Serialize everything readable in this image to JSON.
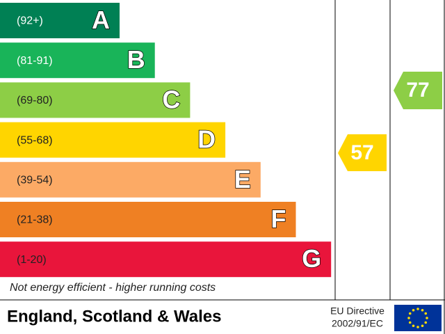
{
  "bands": [
    {
      "range": "(92+)",
      "letter": "A"
    },
    {
      "range": "(81-91)",
      "letter": "B"
    },
    {
      "range": "(69-80)",
      "letter": "C"
    },
    {
      "range": "(55-68)",
      "letter": "D"
    },
    {
      "range": "(39-54)",
      "letter": "E"
    },
    {
      "range": "(21-38)",
      "letter": "F"
    },
    {
      "range": "(1-20)",
      "letter": "G"
    }
  ],
  "footer_note": "Not energy efficient - higher running costs",
  "region": "England, Scotland & Wales",
  "directive": {
    "line1": "EU Directive",
    "line2": "2002/91/EC"
  },
  "current": 57,
  "potential": 77
}
